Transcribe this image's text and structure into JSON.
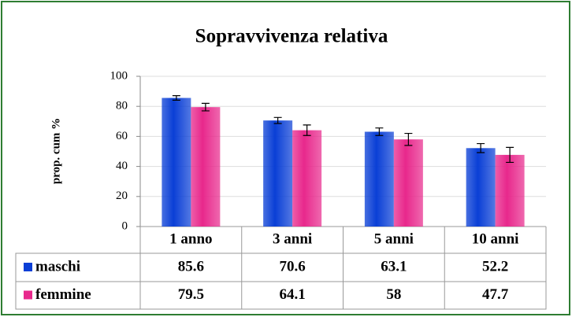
{
  "chart_data": {
    "type": "bar",
    "title": "Sopravvivenza relativa",
    "y_label": "prop. cum %",
    "categories": [
      "1 anno",
      "3 anni",
      "5 anni",
      "10 anni"
    ],
    "series": [
      {
        "name": "maschi",
        "color": "#0a3fd6",
        "values": [
          85.6,
          70.6,
          63.1,
          52.2
        ],
        "errors": [
          1.5,
          2,
          2.5,
          3
        ]
      },
      {
        "name": "femmine",
        "color": "#e8288c",
        "values": [
          79.5,
          64.1,
          58,
          47.7
        ],
        "errors": [
          2.5,
          3.5,
          4,
          5
        ]
      }
    ],
    "ylim": [
      0,
      100
    ],
    "yticks": [
      0,
      20,
      40,
      60,
      80,
      100
    ],
    "grid": true
  }
}
